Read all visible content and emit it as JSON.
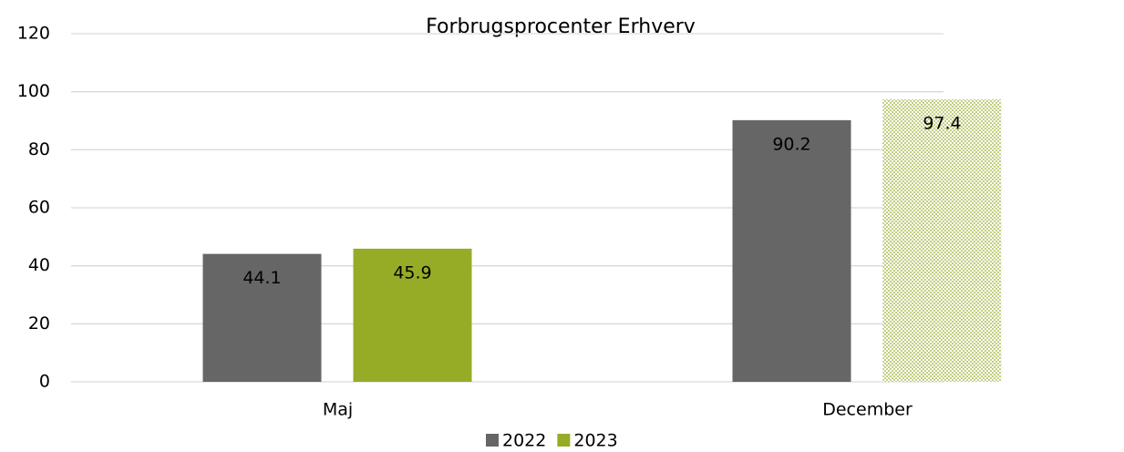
{
  "chart_data": {
    "type": "bar",
    "title": "Forbrugsprocenter Erhverv",
    "categories": [
      "Maj",
      "December"
    ],
    "series": [
      {
        "name": "2022",
        "color": "#666666",
        "values": [
          44.1,
          90.2
        ]
      },
      {
        "name": "2023",
        "color": "#96ac26",
        "values": [
          45.9,
          97.4
        ],
        "fill_styles": [
          "solid",
          "dotted"
        ]
      }
    ],
    "ylim": [
      0,
      120
    ],
    "yticks": [
      0,
      20,
      40,
      60,
      80,
      100,
      120
    ],
    "grid": true,
    "legend": "bottom"
  }
}
